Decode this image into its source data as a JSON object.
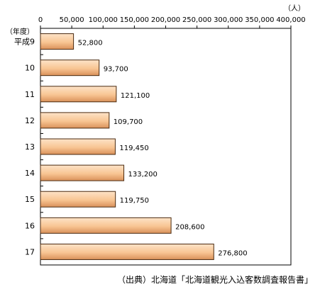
{
  "chart_data": {
    "type": "bar",
    "orientation": "horizontal",
    "unit": "（人）",
    "year_header": "（年度）",
    "categories": [
      "平成9",
      "10",
      "11",
      "12",
      "13",
      "14",
      "15",
      "16",
      "17"
    ],
    "values": [
      52800,
      93700,
      121100,
      109700,
      119450,
      133200,
      119750,
      208600,
      276800
    ],
    "value_labels": [
      "52,800",
      "93,700",
      "121,100",
      "109,700",
      "119,450",
      "133,200",
      "119,750",
      "208,600",
      "276,800"
    ],
    "xlim": [
      0,
      400000
    ],
    "ticks": [
      0,
      50000,
      100000,
      150000,
      200000,
      250000,
      300000,
      350000,
      400000
    ],
    "tick_labels": [
      "0",
      "50,000",
      "100,000",
      "150,000",
      "200,000",
      "250,000",
      "300,000",
      "350,000",
      "400,000"
    ],
    "grid": false,
    "colors": {
      "bar_light": "#fde3c8",
      "bar_mid": "#f8c593",
      "bar_dark": "#d9915a",
      "bar_edge": "#4a2a10"
    }
  },
  "source": "（出典）北海道「北海道観光入込客数調査報告書」"
}
